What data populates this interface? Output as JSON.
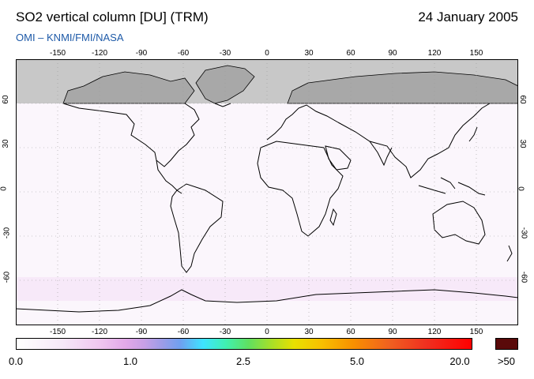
{
  "header": {
    "title": "SO2 vertical column [DU] (TRM)",
    "date": "24 January 2005",
    "credit": "OMI  –  KNMI/FMI/NASA"
  },
  "map": {
    "projection": "equirectangular",
    "lon_ticks": [
      "-150",
      "-120",
      "-90",
      "-60",
      "-30",
      "0",
      "30",
      "60",
      "90",
      "120",
      "150"
    ],
    "lat_ticks": [
      "60",
      "30",
      "0",
      "-30",
      "-60"
    ],
    "no_data_region": "north of 60°N (polar night)",
    "no_data_color": "#c8c8c8",
    "ocean_color": "#ffffff",
    "coastline_color": "#000000"
  },
  "colorbar": {
    "labels": [
      "0.0",
      "1.0",
      "2.5",
      "5.0",
      "20.0",
      ">50"
    ],
    "overflow_color": "#5a0a0a"
  }
}
